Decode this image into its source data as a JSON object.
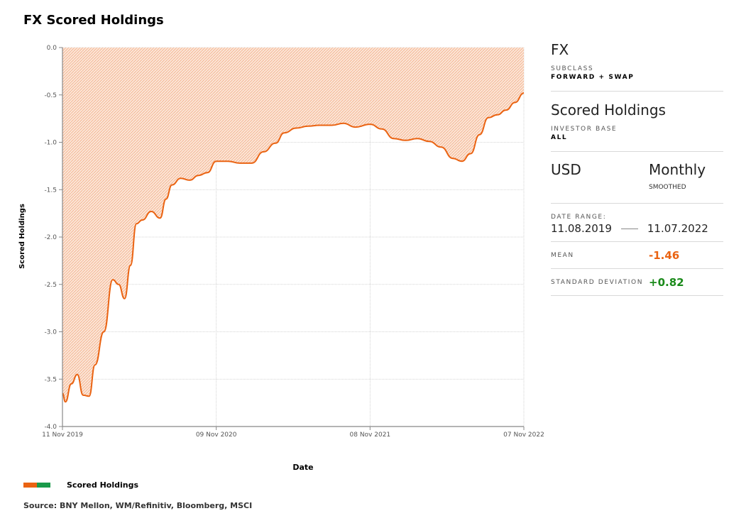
{
  "title": "FX Scored Holdings",
  "colors": {
    "line": "#ea6312",
    "fill": "#f7c9ad",
    "positive": "#1a8a1a",
    "negative": "#ea6312",
    "legend_a": "#ea6312",
    "legend_b": "#1a9a4a"
  },
  "side": {
    "asset": "FX",
    "subclass_label": "SUBCLASS",
    "subclass_value": "FORWARD + SWAP",
    "metric": "Scored Holdings",
    "investor_label": "INVESTOR BASE",
    "investor_value": "ALL",
    "currency": "USD",
    "frequency": "Monthly",
    "smoothing": "SMOOTHED",
    "date_range_label": "DATE RANGE:",
    "date_start": "11.08.2019",
    "date_end": "11.07.2022",
    "mean_label": "MEAN",
    "mean_value": "-1.46",
    "std_label": "STANDARD DEVIATION",
    "std_value": "+0.82"
  },
  "legend": {
    "label": "Scored Holdings"
  },
  "source": "Source: BNY Mellon, WM/Refinitiv, Bloomberg, MSCI",
  "chart_data": {
    "type": "area",
    "title": "FX Scored Holdings",
    "xlabel": "Date",
    "ylabel": "Scored Holdings",
    "xlim": [
      "2019-11-11",
      "2022-11-07"
    ],
    "ylim": [
      -4.0,
      0.0
    ],
    "x_ticks": [
      "11 Nov 2019",
      "09 Nov 2020",
      "08 Nov 2021",
      "07 Nov 2022"
    ],
    "y_ticks": [
      "0.0",
      "-0.5",
      "-1.0",
      "-1.5",
      "-2.0",
      "-2.5",
      "-3.0",
      "-3.5",
      "-4.0"
    ],
    "grid": true,
    "legend_position": "bottom-left",
    "series": [
      {
        "name": "Scored Holdings",
        "x": [
          "2019-11-11",
          "2019-11-18",
          "2019-12-02",
          "2019-12-16",
          "2019-12-30",
          "2020-01-13",
          "2020-01-27",
          "2020-02-17",
          "2020-03-09",
          "2020-03-23",
          "2020-04-06",
          "2020-04-20",
          "2020-05-04",
          "2020-05-18",
          "2020-06-08",
          "2020-06-29",
          "2020-07-13",
          "2020-07-27",
          "2020-08-17",
          "2020-09-07",
          "2020-09-28",
          "2020-10-19",
          "2020-11-09",
          "2020-12-07",
          "2021-01-04",
          "2021-02-01",
          "2021-03-01",
          "2021-03-29",
          "2021-04-19",
          "2021-05-17",
          "2021-06-14",
          "2021-07-12",
          "2021-08-09",
          "2021-09-06",
          "2021-10-04",
          "2021-11-08",
          "2021-12-06",
          "2022-01-03",
          "2022-01-31",
          "2022-02-28",
          "2022-03-28",
          "2022-04-25",
          "2022-05-23",
          "2022-06-13",
          "2022-07-04",
          "2022-07-25",
          "2022-08-15",
          "2022-09-05",
          "2022-09-26",
          "2022-10-17",
          "2022-11-07"
        ],
        "values": [
          -3.65,
          -3.74,
          -3.55,
          -3.45,
          -3.67,
          -3.68,
          -3.35,
          -3.0,
          -2.45,
          -2.5,
          -2.65,
          -2.3,
          -1.86,
          -1.82,
          -1.73,
          -1.8,
          -1.6,
          -1.45,
          -1.38,
          -1.4,
          -1.35,
          -1.32,
          -1.2,
          -1.2,
          -1.22,
          -1.22,
          -1.1,
          -1.01,
          -0.9,
          -0.85,
          -0.83,
          -0.82,
          -0.82,
          -0.8,
          -0.84,
          -0.81,
          -0.86,
          -0.96,
          -0.98,
          -0.96,
          -0.99,
          -1.05,
          -1.17,
          -1.2,
          -1.12,
          -0.92,
          -0.74,
          -0.71,
          -0.66,
          -0.58,
          -0.48
        ]
      }
    ]
  }
}
